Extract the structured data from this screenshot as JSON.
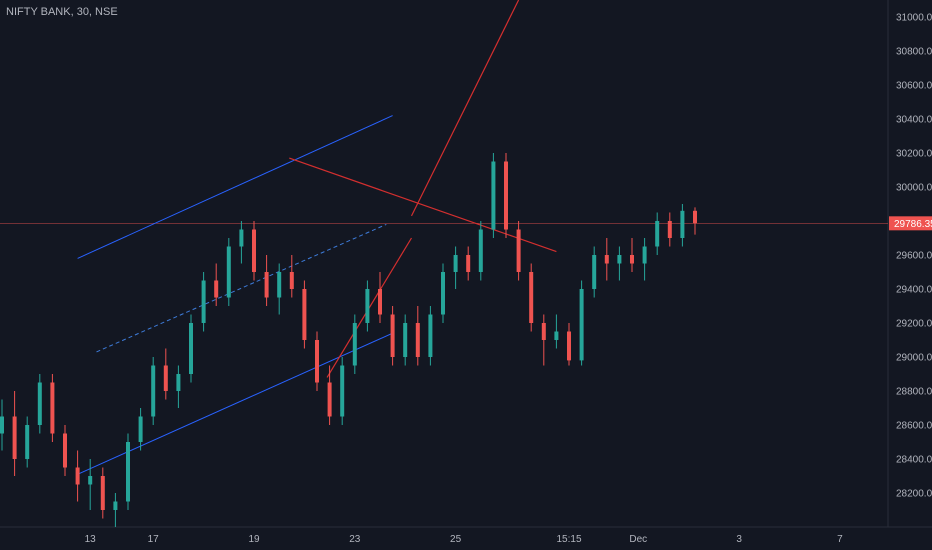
{
  "symbol_label": "NIFTY BANK, 30, NSE",
  "colors": {
    "background": "#131722",
    "up": "#26a69a",
    "down": "#ef5350",
    "channel": "#2962ff",
    "channel_mid": "#3d7bd9",
    "wedge": "#d32f2f",
    "axis_text": "#b2b5be",
    "price_line": "#ef5350"
  },
  "chart_data": {
    "type": "candlestick",
    "title": "",
    "y_axis": {
      "position": "right",
      "range": [
        28000,
        31100
      ],
      "ticks": [
        28200,
        28400,
        28600,
        28800,
        29000,
        29200,
        29400,
        29600,
        29800,
        30000,
        30200,
        30400,
        30600,
        30800,
        31000
      ],
      "tick_labels": [
        "28200.00",
        "28400.00",
        "28600.00",
        "28800.00",
        "29000.00",
        "29200.00",
        "29400.00",
        "29600.00",
        "29800.00",
        "30000.00",
        "30200.00",
        "30400.00",
        "30600.00",
        "30800.00",
        "31000.00"
      ]
    },
    "x_axis": {
      "tick_labels": [
        "13",
        "17",
        "19",
        "23",
        "25",
        "15:15",
        "Dec",
        "3",
        "7"
      ],
      "tick_positions": [
        7,
        12,
        20,
        28,
        36,
        45,
        50.5,
        58.5,
        66.5
      ]
    },
    "last_price": 29786.35,
    "last_price_label": "29786.35",
    "candles": [
      [
        28550,
        28750,
        28450,
        28650
      ],
      [
        28650,
        28800,
        28300,
        28400
      ],
      [
        28400,
        28650,
        28350,
        28600
      ],
      [
        28600,
        28900,
        28550,
        28850
      ],
      [
        28850,
        28900,
        28500,
        28550
      ],
      [
        28550,
        28600,
        28300,
        28350
      ],
      [
        28350,
        28450,
        28150,
        28250
      ],
      [
        28250,
        28400,
        28100,
        28300
      ],
      [
        28300,
        28350,
        28050,
        28100
      ],
      [
        28100,
        28200,
        28000,
        28150
      ],
      [
        28150,
        28550,
        28100,
        28500
      ],
      [
        28500,
        28700,
        28450,
        28650
      ],
      [
        28650,
        29000,
        28600,
        28950
      ],
      [
        28950,
        29050,
        28750,
        28800
      ],
      [
        28800,
        28950,
        28700,
        28900
      ],
      [
        28900,
        29250,
        28850,
        29200
      ],
      [
        29200,
        29500,
        29150,
        29450
      ],
      [
        29450,
        29550,
        29300,
        29350
      ],
      [
        29350,
        29700,
        29300,
        29650
      ],
      [
        29650,
        29800,
        29550,
        29750
      ],
      [
        29750,
        29800,
        29450,
        29500
      ],
      [
        29500,
        29600,
        29300,
        29350
      ],
      [
        29350,
        29550,
        29250,
        29500
      ],
      [
        29500,
        29600,
        29350,
        29400
      ],
      [
        29400,
        29450,
        29050,
        29100
      ],
      [
        29100,
        29150,
        28800,
        28850
      ],
      [
        28850,
        28950,
        28600,
        28650
      ],
      [
        28650,
        29000,
        28600,
        28950
      ],
      [
        28950,
        29250,
        28900,
        29200
      ],
      [
        29200,
        29450,
        29150,
        29400
      ],
      [
        29400,
        29500,
        29200,
        29250
      ],
      [
        29250,
        29300,
        28950,
        29000
      ],
      [
        29000,
        29250,
        28950,
        29200
      ],
      [
        29200,
        29300,
        28950,
        29000
      ],
      [
        29000,
        29300,
        28950,
        29250
      ],
      [
        29250,
        29550,
        29200,
        29500
      ],
      [
        29500,
        29650,
        29400,
        29600
      ],
      [
        29600,
        29650,
        29450,
        29500
      ],
      [
        29500,
        29800,
        29450,
        29750
      ],
      [
        29750,
        30200,
        29700,
        30150
      ],
      [
        30150,
        30200,
        29700,
        29750
      ],
      [
        29750,
        29800,
        29450,
        29500
      ],
      [
        29500,
        29550,
        29150,
        29200
      ],
      [
        29200,
        29250,
        28950,
        29100
      ],
      [
        29100,
        29250,
        29050,
        29150
      ],
      [
        29150,
        29200,
        28950,
        28980
      ],
      [
        28980,
        29450,
        28950,
        29400
      ],
      [
        29400,
        29650,
        29350,
        29600
      ],
      [
        29600,
        29700,
        29450,
        29550
      ],
      [
        29550,
        29650,
        29450,
        29600
      ],
      [
        29600,
        29700,
        29500,
        29550
      ],
      [
        29550,
        29700,
        29450,
        29650
      ],
      [
        29650,
        29850,
        29600,
        29800
      ],
      [
        29800,
        29850,
        29650,
        29700
      ],
      [
        29700,
        29900,
        29650,
        29860
      ],
      [
        29860,
        29880,
        29720,
        29786.35
      ]
    ],
    "annotations": {
      "channel_upper": [
        [
          6,
          29580
        ],
        [
          31,
          30420
        ]
      ],
      "channel_middle": [
        [
          7.5,
          29030
        ],
        [
          30.5,
          29780
        ]
      ],
      "channel_lower": [
        [
          6,
          28310
        ],
        [
          31,
          29140
        ]
      ],
      "wedge_upper": [
        [
          22.8,
          30170
        ],
        [
          44,
          29620
        ]
      ],
      "wedge_lower": [
        [
          25.8,
          28880
        ],
        [
          32.5,
          29700
        ]
      ],
      "breakout_line": [
        [
          32.5,
          29830
        ],
        [
          41,
          31100
        ]
      ]
    }
  }
}
